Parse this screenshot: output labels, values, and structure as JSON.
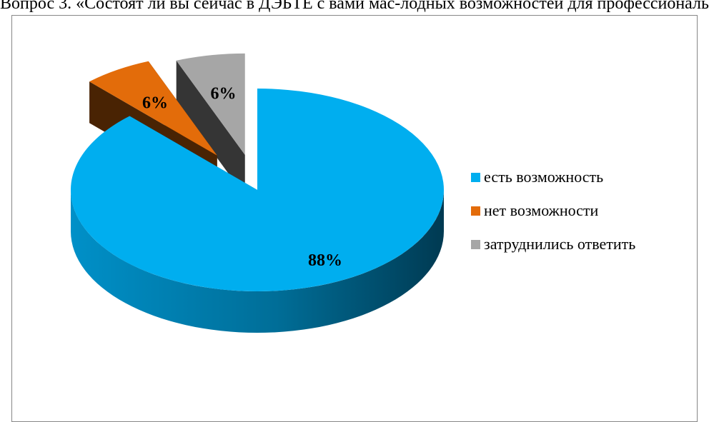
{
  "page": {
    "title": "Вопрос 3. «Состоят ли вы сейчас в ДЭБТЕ с вами мас-лодных возможностей для профессиональ"
  },
  "chart_data": {
    "type": "pie",
    "title": "",
    "slices": [
      {
        "name": "есть возможность",
        "value": 88,
        "label": "88%",
        "color": "#00AEEF",
        "exploded": false
      },
      {
        "name": "нет возможности",
        "value": 6,
        "label": "6%",
        "color": "#E36C0A",
        "exploded": true
      },
      {
        "name": "затруднились ответить",
        "value": 6,
        "label": "6%",
        "color": "#A6A6A6",
        "exploded": true
      }
    ],
    "legend_position": "right",
    "three_d": true
  }
}
